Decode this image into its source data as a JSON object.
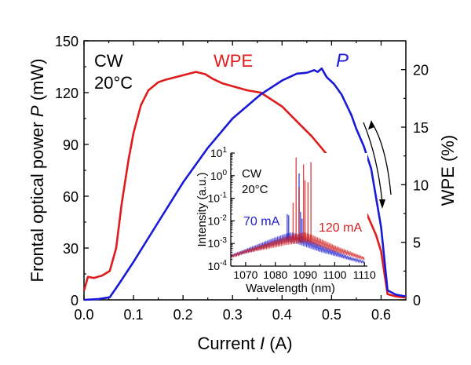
{
  "chart_data": [
    {
      "type": "line",
      "title": "",
      "xlabel": "Current I (A)",
      "xlabel_parts": {
        "prefix": "Current ",
        "italic": "I",
        "suffix": " (A)"
      },
      "ylabel": "Frontal optical power P (mW)",
      "ylabel_parts": {
        "prefix": "Frontal optical power ",
        "italic": "P",
        "suffix": " (mW)"
      },
      "y2label": "WPE (%)",
      "xlim": [
        0.0,
        0.65
      ],
      "ylim": [
        0,
        150
      ],
      "y2lim": [
        0,
        22.5
      ],
      "xticks": [
        "0.0",
        "0.1",
        "0.2",
        "0.3",
        "0.4",
        "0.5",
        "0.6"
      ],
      "yticks": [
        "0",
        "30",
        "60",
        "90",
        "120",
        "150"
      ],
      "y2ticks": [
        "0",
        "5",
        "10",
        "15",
        "20"
      ],
      "grid": false,
      "annotations": [
        "CW",
        "20°C"
      ],
      "series": [
        {
          "name": "P",
          "axis": "left",
          "color": "#1a1ad6",
          "label": "P",
          "x": [
            0.0,
            0.03,
            0.052,
            0.07,
            0.1,
            0.15,
            0.2,
            0.25,
            0.3,
            0.357,
            0.4,
            0.43,
            0.45,
            0.465,
            0.472,
            0.48,
            0.49,
            0.505,
            0.52,
            0.54,
            0.55,
            0.565,
            0.58,
            0.6,
            0.613,
            0.63,
            0.65
          ],
          "values": [
            0,
            0.5,
            1.5,
            9,
            22,
            45,
            68,
            88,
            105,
            119,
            127,
            131,
            131.5,
            133,
            132,
            134,
            129,
            125,
            119,
            107,
            99,
            89,
            76,
            42,
            5.5,
            3,
            2
          ]
        },
        {
          "name": "WPE",
          "axis": "right",
          "color": "#e01b1b",
          "label": "WPE",
          "x": [
            0.0,
            0.008,
            0.02,
            0.036,
            0.052,
            0.065,
            0.076,
            0.09,
            0.1,
            0.115,
            0.13,
            0.15,
            0.163,
            0.19,
            0.226,
            0.245,
            0.26,
            0.28,
            0.305,
            0.33,
            0.357,
            0.4,
            0.43,
            0.46,
            0.495,
            0.52,
            0.54,
            0.56,
            0.573,
            0.59,
            0.6,
            0.613,
            0.63,
            0.65
          ],
          "values": [
            0.8,
            2.0,
            1.9,
            2.1,
            2.5,
            4.5,
            8.3,
            12.2,
            14.5,
            16.9,
            18.2,
            18.9,
            19.1,
            19.4,
            19.8,
            19.6,
            19.2,
            18.8,
            18.5,
            18.2,
            18.0,
            16.8,
            15.5,
            14.2,
            12.4,
            10.8,
            9.7,
            8.4,
            7.3,
            5.6,
            4.2,
            0.5,
            0.3,
            0.2
          ]
        }
      ],
      "arrows": [
        "up",
        "down"
      ],
      "legend": "inline labels: WPE top-center, P top-right"
    },
    {
      "type": "line",
      "title": "inset",
      "xlabel": "Wavelength (nm)",
      "ylabel": "Intensity (a.u.)",
      "xlim": [
        1065,
        1111
      ],
      "ylim_log10": [
        -4,
        1
      ],
      "xticks": [
        "1070",
        "1080",
        "1090",
        "1100",
        "1110"
      ],
      "yticks": [
        {
          "base": "10",
          "exp": "1"
        },
        {
          "base": "10",
          "exp": "0"
        },
        {
          "base": "10",
          "exp": "-1"
        },
        {
          "base": "10",
          "exp": "-2"
        },
        {
          "base": "10",
          "exp": "-3"
        },
        {
          "base": "10",
          "exp": "-4"
        }
      ],
      "annotations": [
        "CW",
        "20°C"
      ],
      "series": [
        {
          "name": "70 mA",
          "color": "#2020d0",
          "envelope_x": [
            1065,
            1070,
            1075,
            1080,
            1083,
            1085,
            1087,
            1089,
            1092,
            1095,
            1100,
            1105,
            1110
          ],
          "envelope_log10": [
            -3.6,
            -3.4,
            -3.2,
            -3.0,
            -2.9,
            -2.85,
            -2.9,
            -3.0,
            -3.15,
            -3.3,
            -3.5,
            -3.7,
            -3.85
          ],
          "peaks_x": [
            1084,
            1084.5,
            1088,
            1088.5,
            1089
          ],
          "peaks_log10": [
            -1.7,
            -1.75,
            0.1,
            -1.6,
            -1.9
          ]
        },
        {
          "name": "120 mA",
          "color": "#d02020",
          "envelope_x": [
            1065,
            1070,
            1075,
            1080,
            1083,
            1085,
            1088,
            1090,
            1093,
            1096,
            1100,
            1105,
            1110
          ],
          "envelope_log10": [
            -3.6,
            -3.4,
            -3.25,
            -3.1,
            -3.0,
            -2.95,
            -2.9,
            -2.85,
            -2.95,
            -3.1,
            -3.3,
            -3.5,
            -3.7
          ],
          "peaks_x": [
            1086,
            1087,
            1088,
            1089.5,
            1090,
            1091,
            1092
          ],
          "peaks_log10": [
            -1.2,
            0.8,
            -0.5,
            0.5,
            -0.2,
            -0.3,
            0.6
          ]
        }
      ]
    }
  ],
  "labels": {
    "cw": "CW",
    "temp": "20°C",
    "wpe": "WPE",
    "p": "P",
    "inset_cw": "CW",
    "inset_temp": "20°C",
    "ma70": "70 mA",
    "ma120": "120 mA",
    "inset_xlabel": "Wavelength (nm)",
    "inset_ylabel": "Intensity (a.u.)",
    "xlabel_prefix": "Current ",
    "xlabel_italic": "I",
    "xlabel_suffix": " (A)",
    "ylabel_prefix": "Frontal optical power ",
    "ylabel_italic": "P",
    "ylabel_suffix": " (mW)",
    "y2label": "WPE (%)"
  }
}
